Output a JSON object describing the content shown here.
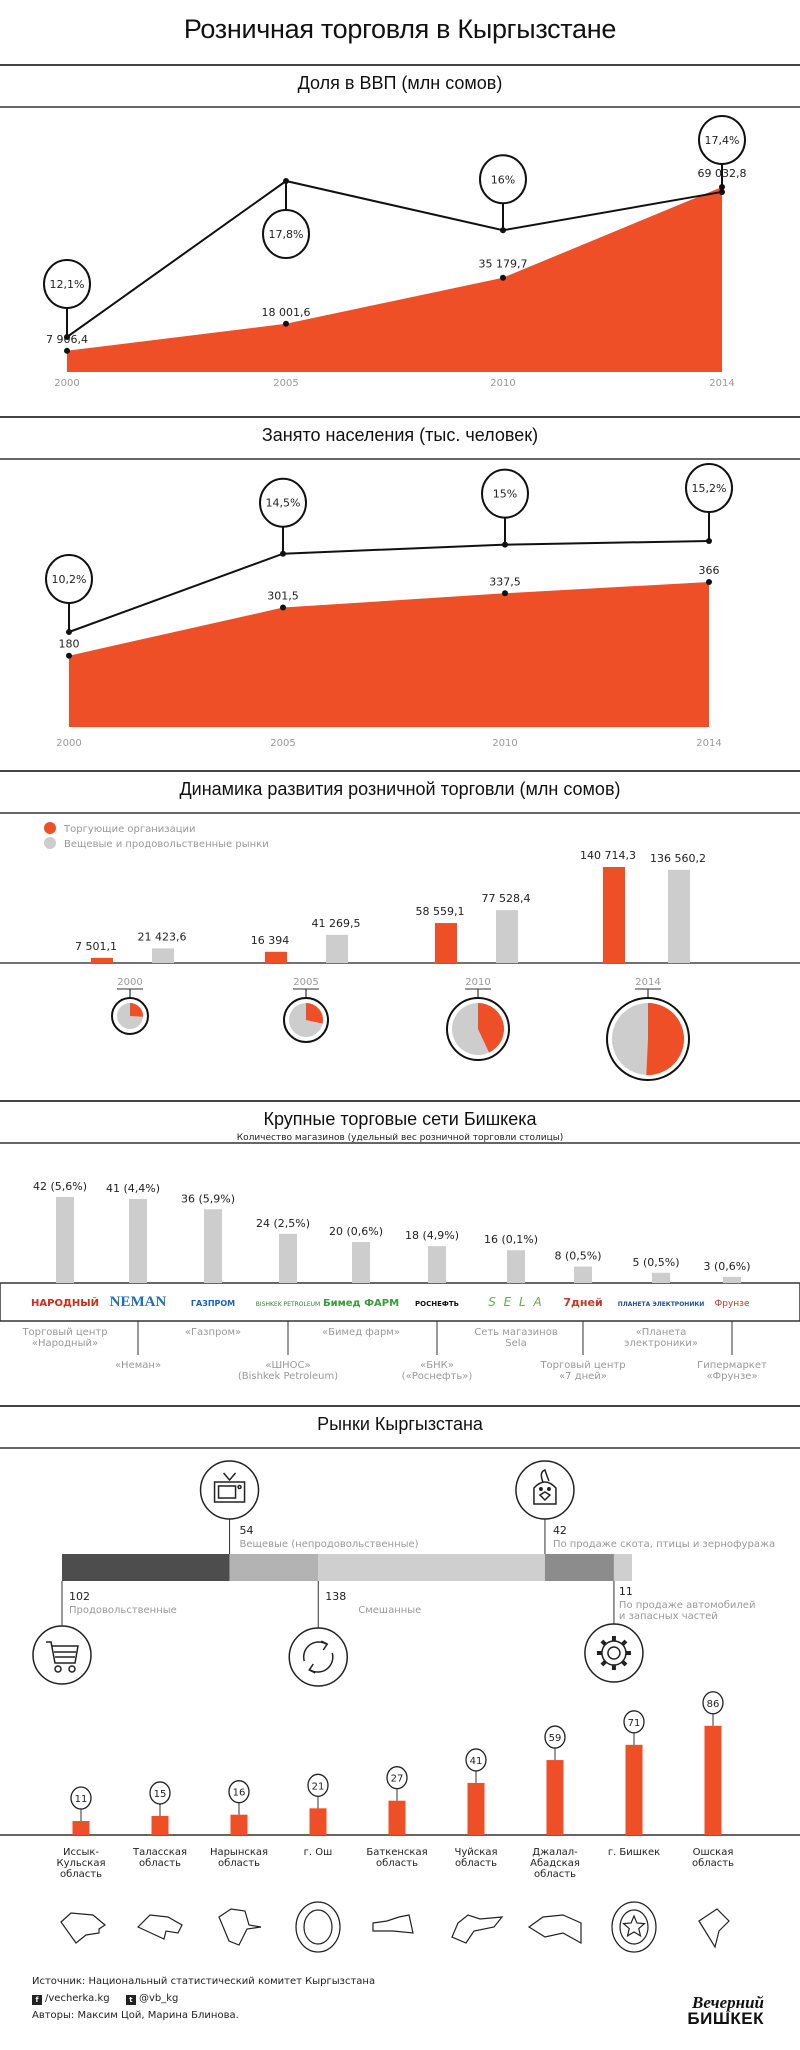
{
  "title": "Розничная торговля в Кыргызстане",
  "colors": {
    "accent": "#ee4f27",
    "gray": "#cdcdcd",
    "dark": "#4d4d4d",
    "mid": "#b3b3b3",
    "dark_gray": "#8c8c8c",
    "light": "#cfcfcf"
  },
  "sections": {
    "gdp": "Доля в ВВП (млн сомов)",
    "employment": "Занято населения (тыс. человек)",
    "dynamics": "Динамика развития розничной торговли (млн сомов)",
    "chains": "Крупные торговые сети Бишкека",
    "markets": "Рынки Кыргызстана"
  },
  "chart_data": [
    {
      "type": "area",
      "title": "Доля в ВВП (млн сомов)",
      "categories": [
        "2000",
        "2005",
        "2010",
        "2014"
      ],
      "series": [
        {
          "name": "Розничная торговля, млн сомов",
          "values": [
            7906.4,
            18001.6,
            35179.7,
            69032.8
          ],
          "labels": [
            "7 906,4",
            "18 001,6",
            "35 179,7",
            "69 032,8"
          ]
        },
        {
          "name": "Доля в ВВП, %",
          "values": [
            12.1,
            17.8,
            16,
            17.4
          ],
          "labels": [
            "12,1%",
            "17,8%",
            "16%",
            "17,4%"
          ]
        }
      ]
    },
    {
      "type": "area",
      "title": "Занято населения (тыс. человек)",
      "categories": [
        "2000",
        "2005",
        "2010",
        "2014"
      ],
      "series": [
        {
          "name": "Занято, тыс. человек",
          "values": [
            180,
            301.5,
            337.5,
            366
          ],
          "labels": [
            "180",
            "301,5",
            "337,5",
            "366"
          ]
        },
        {
          "name": "Доля занятых, %",
          "values": [
            10.2,
            14.5,
            15,
            15.2
          ],
          "labels": [
            "10,2%",
            "14,5%",
            "15%",
            "15,2%"
          ]
        }
      ]
    },
    {
      "type": "bar",
      "title": "Динамика развития розничной торговли (млн сомов)",
      "categories": [
        "2000",
        "2005",
        "2010",
        "2014"
      ],
      "legend": [
        "Торгующие организации",
        "Вещевые и продовольственные рынки"
      ],
      "series": [
        {
          "name": "Торгующие организации",
          "values": [
            7501.1,
            16394,
            58559.1,
            140714.3
          ],
          "labels": [
            "7 501,1",
            "16 394",
            "58 559,1",
            "140 714,3"
          ]
        },
        {
          "name": "Вещевые и продовольственные рынки",
          "values": [
            21423.6,
            41269.5,
            77528.4,
            136560.2
          ],
          "labels": [
            "21 423,6",
            "41 269,5",
            "77 528,4",
            "136 560,2"
          ]
        }
      ]
    },
    {
      "type": "bar",
      "title": "Крупные торговые сети Бишкека",
      "subtitle": "Количество магазинов (удельный вес розничной торговли столицы)",
      "items": [
        {
          "count": 42,
          "share": "42 (5,6%)",
          "logo": "НАРОДНЫЙ",
          "name": "Торговый центр «Народный»",
          "name_lines": [
            "Торговый центр",
            "«Народный»"
          ]
        },
        {
          "count": 41,
          "share": "41 (4,4%)",
          "logo": "NEMAN",
          "name": "«Неман»",
          "name_lines": [
            "«Неман»"
          ]
        },
        {
          "count": 36,
          "share": "36 (5,9%)",
          "logo": "ГАЗПРОМ",
          "name": "«Газпром»",
          "name_lines": [
            "«Газпром»"
          ]
        },
        {
          "count": 24,
          "share": "24 (2,5%)",
          "logo": "BISHKEK PETROLEUM",
          "name": "«ШНОС» (Bishkek Petroleum)",
          "name_lines": [
            "«ШНОС»",
            "(Bishkek Petroleum)"
          ]
        },
        {
          "count": 20,
          "share": "20 (0,6%)",
          "logo": "Бимед ФАРМ",
          "name": "«Бимед фарм»",
          "name_lines": [
            "«Бимед фарм»"
          ]
        },
        {
          "count": 18,
          "share": "18 (4,9%)",
          "logo": "РОСНЕФТЬ",
          "name": "«БНК» («Роснефть»)",
          "name_lines": [
            "«БНК»",
            "(«Роснефть»)"
          ]
        },
        {
          "count": 16,
          "share": "16 (0,1%)",
          "logo": "S E L A",
          "name": "Сеть магазинов Sela",
          "name_lines": [
            "Сеть магазинов",
            "Sela"
          ]
        },
        {
          "count": 8,
          "share": "8 (0,5%)",
          "logo": "7дней",
          "name": "Торговый центр «7 дней»",
          "name_lines": [
            "Торговый центр",
            "«7 дней»"
          ]
        },
        {
          "count": 5,
          "share": "5 (0,5%)",
          "logo": "ПЛАНЕТА ЭЛЕКТРОНИКИ",
          "name": "«Планета электроники»",
          "name_lines": [
            "«Планета",
            "электроники»"
          ]
        },
        {
          "count": 3,
          "share": "3 (0,6%)",
          "logo": "Фрунзе",
          "name": "Гипермаркет «Фрунзе»",
          "name_lines": [
            "Гипермаркет",
            "«Фрунзе»"
          ]
        }
      ]
    },
    {
      "type": "bar",
      "title": "Рынки Кыргызстана",
      "market_types": [
        {
          "value": 102,
          "label": "102",
          "name": "Продовольственные",
          "icon": "cart-icon"
        },
        {
          "value": 54,
          "label": "54",
          "name": "Вещевые (непродовольственные)",
          "icon": "tv-icon"
        },
        {
          "value": 138,
          "label": "138",
          "name": "Смешанные",
          "icon": "recycle-icon"
        },
        {
          "value": 42,
          "label": "42",
          "name": "По продаже скота, птицы и зернофуража",
          "icon": "chicken-icon"
        },
        {
          "value": 11,
          "label": "11",
          "name_lines": [
            "По продаже автомобилей",
            "и запасных частей"
          ],
          "name": "По продаже автомобилей и запасных частей",
          "icon": "gear-icon"
        }
      ],
      "regions": [
        {
          "value": 11,
          "label": "11",
          "name_lines": [
            "Иссык-",
            "Кульская",
            "область"
          ]
        },
        {
          "value": 15,
          "label": "15",
          "name_lines": [
            "Таласская",
            "область"
          ]
        },
        {
          "value": 16,
          "label": "16",
          "name_lines": [
            "Нарынская",
            "область"
          ]
        },
        {
          "value": 21,
          "label": "21",
          "name_lines": [
            "г. Ош"
          ]
        },
        {
          "value": 27,
          "label": "27",
          "name_lines": [
            "Баткенская",
            "область"
          ]
        },
        {
          "value": 41,
          "label": "41",
          "name_lines": [
            "Чуйская",
            "область"
          ]
        },
        {
          "value": 59,
          "label": "59",
          "name_lines": [
            "Джалал-",
            "Абадская",
            "область"
          ]
        },
        {
          "value": 71,
          "label": "71",
          "name_lines": [
            "г. Бишкек"
          ]
        },
        {
          "value": 86,
          "label": "86",
          "name_lines": [
            "Ошская",
            "область"
          ]
        }
      ]
    }
  ],
  "footer": {
    "source": "Источник: Национальный статистический комитет Кыргызстана",
    "facebook": "/vecherka.kg",
    "twitter": "@vb_kg",
    "authors": "Авторы: Максим Цой, Марина Блинова.",
    "logo_line1": "Вечерний",
    "logo_line2": "БИШКЕК"
  }
}
